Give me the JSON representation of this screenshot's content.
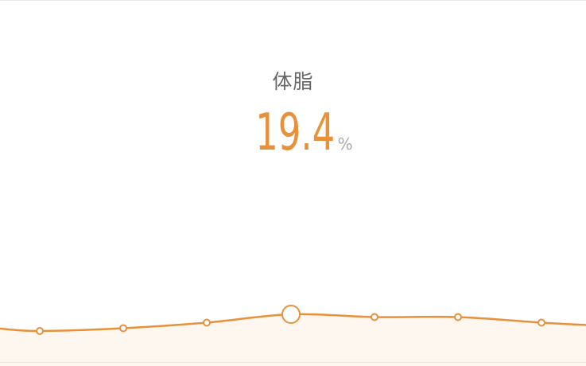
{
  "metric": {
    "title": "体脂",
    "value": "19.4",
    "unit": "%"
  },
  "colors": {
    "accent": "#e8903a",
    "title": "#666666",
    "unit": "#a9a9a9",
    "fill": "#fdf7f0"
  },
  "trend": {
    "values": [
      19.1,
      19.15,
      19.25,
      19.4,
      19.35,
      19.35,
      19.25
    ],
    "selected_index": 3,
    "range": [
      18.0,
      20.0
    ]
  }
}
